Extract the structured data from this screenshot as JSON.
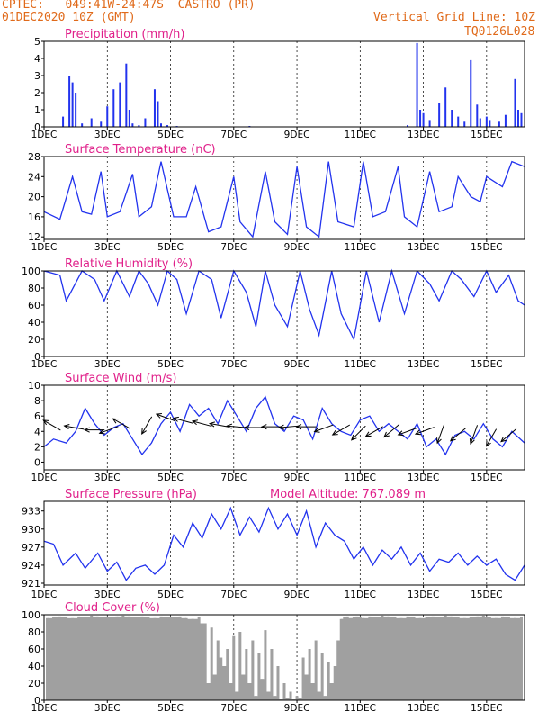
{
  "header": {
    "line1": "CPTEC:   049:41W-24:47S  CASTRO (PR)",
    "line2": "01DEC2020 10Z (GMT)",
    "grid_note": "Vertical Grid Line: 10Z",
    "code": "TQ0126L028",
    "model_altitude": "Model Altitude: 767.089 m"
  },
  "colors": {
    "header": "#e06a1a",
    "title": "#e0208a",
    "series": "#2233ee",
    "cloud": "#a0a0a0",
    "frame": "#000000"
  },
  "x_axis": {
    "ticks": [
      "1DEC",
      "3DEC",
      "5DEC",
      "7DEC",
      "9DEC",
      "11DEC",
      "13DEC",
      "15DEC"
    ],
    "tick_days": [
      1,
      3,
      5,
      7,
      9,
      11,
      13,
      15
    ],
    "range_days": [
      1.0,
      16.2
    ]
  },
  "chart_data": [
    {
      "id": "precip",
      "type": "bar",
      "title": "Precipitation (mm/h)",
      "ylim": [
        0,
        5
      ],
      "yticks": [
        0,
        1,
        2,
        3,
        4,
        5
      ],
      "grid_hline": 5,
      "x": [
        1.6,
        1.8,
        1.9,
        2.0,
        2.2,
        2.5,
        2.8,
        3.0,
        3.2,
        3.4,
        3.6,
        3.7,
        3.8,
        4.0,
        4.2,
        4.5,
        4.6,
        4.7,
        4.9,
        5.2,
        6.5,
        7.5,
        8.5,
        9.5,
        10.5,
        11.5,
        12.5,
        12.8,
        12.9,
        13.0,
        13.2,
        13.5,
        13.7,
        13.9,
        14.1,
        14.3,
        14.5,
        14.7,
        14.8,
        15.0,
        15.1,
        15.4,
        15.6,
        15.9,
        16.0,
        16.1
      ],
      "values": [
        0.6,
        3.0,
        2.6,
        2.0,
        0.2,
        0.5,
        0.3,
        1.2,
        2.2,
        2.6,
        3.7,
        1.0,
        0.2,
        0.1,
        0.5,
        2.2,
        1.5,
        0.2,
        0.1,
        0.05,
        0.02,
        0.05,
        0.02,
        0.02,
        0.02,
        0.02,
        0.1,
        4.9,
        1.0,
        0.8,
        0.4,
        1.4,
        2.3,
        1.0,
        0.6,
        0.3,
        3.9,
        1.3,
        0.5,
        0.6,
        0.4,
        0.3,
        0.7,
        2.8,
        1.0,
        0.8
      ]
    },
    {
      "id": "temp",
      "type": "line",
      "title": "Surface Temperature (nC)",
      "ylim": [
        11.5,
        28
      ],
      "yticks": [
        12,
        16,
        20,
        24,
        28
      ],
      "grid_hline": 28,
      "x": [
        1.0,
        1.5,
        1.9,
        2.2,
        2.5,
        2.8,
        3.0,
        3.4,
        3.8,
        4.0,
        4.4,
        4.7,
        5.1,
        5.5,
        5.8,
        6.2,
        6.6,
        7.0,
        7.2,
        7.6,
        8.0,
        8.3,
        8.7,
        9.0,
        9.3,
        9.7,
        10.0,
        10.3,
        10.8,
        11.1,
        11.4,
        11.8,
        12.2,
        12.4,
        12.8,
        13.2,
        13.5,
        13.9,
        14.1,
        14.5,
        14.8,
        15.0,
        15.5,
        15.8,
        16.2
      ],
      "y": [
        17,
        15.5,
        24,
        17,
        16.5,
        25,
        16,
        17,
        24.5,
        16,
        18,
        27,
        16,
        16,
        22,
        13,
        14,
        24,
        15,
        12,
        25,
        15,
        12.5,
        26,
        14,
        12,
        27,
        15,
        14,
        27,
        16,
        17,
        26,
        16,
        14,
        25,
        17,
        18,
        24,
        20,
        19,
        24,
        22,
        27,
        26
      ]
    },
    {
      "id": "humidity",
      "type": "line",
      "title": "Relative Humidity (%)",
      "ylim": [
        0,
        100
      ],
      "yticks": [
        0,
        20,
        40,
        60,
        80,
        100
      ],
      "grid_hline": 100,
      "x": [
        1.0,
        1.5,
        1.7,
        2.2,
        2.6,
        2.9,
        3.3,
        3.7,
        4.0,
        4.3,
        4.6,
        4.9,
        5.2,
        5.5,
        5.9,
        6.3,
        6.6,
        7.0,
        7.4,
        7.7,
        8.0,
        8.3,
        8.7,
        9.1,
        9.4,
        9.7,
        10.1,
        10.4,
        10.8,
        11.2,
        11.6,
        12.0,
        12.4,
        12.8,
        13.2,
        13.5,
        13.9,
        14.2,
        14.6,
        15.0,
        15.3,
        15.7,
        16.0,
        16.2
      ],
      "y": [
        100,
        95,
        65,
        100,
        90,
        65,
        100,
        70,
        100,
        85,
        60,
        100,
        90,
        50,
        100,
        90,
        45,
        100,
        75,
        35,
        100,
        60,
        35,
        100,
        55,
        25,
        100,
        50,
        20,
        100,
        40,
        100,
        50,
        100,
        85,
        65,
        100,
        90,
        70,
        100,
        75,
        95,
        65,
        60
      ]
    },
    {
      "id": "wind",
      "type": "line",
      "title": "Surface Wind (m/s)",
      "ylim": [
        -1,
        10
      ],
      "yticks": [
        0,
        2,
        4,
        6,
        8,
        10
      ],
      "grid_hline": 10,
      "x": [
        1.0,
        1.3,
        1.7,
        2.0,
        2.3,
        2.6,
        2.9,
        3.2,
        3.5,
        3.8,
        4.1,
        4.4,
        4.7,
        5.0,
        5.3,
        5.6,
        5.9,
        6.2,
        6.5,
        6.8,
        7.1,
        7.4,
        7.7,
        8.0,
        8.3,
        8.6,
        8.9,
        9.2,
        9.5,
        9.8,
        10.1,
        10.4,
        10.7,
        11.0,
        11.3,
        11.6,
        11.9,
        12.2,
        12.5,
        12.8,
        13.1,
        13.4,
        13.7,
        14.0,
        14.3,
        14.6,
        14.9,
        15.2,
        15.5,
        15.8,
        16.2
      ],
      "y": [
        2,
        3,
        2.5,
        4,
        7,
        5,
        3.5,
        4.5,
        5,
        3,
        1,
        2.5,
        5,
        6.5,
        4,
        7.5,
        6,
        7,
        5,
        8,
        6,
        4,
        7,
        8.5,
        5,
        4,
        6,
        5.5,
        3,
        7,
        5,
        4,
        3.5,
        5.5,
        6,
        4,
        5,
        4,
        3,
        5,
        2,
        3,
        1,
        3.5,
        4,
        3,
        5,
        3,
        2,
        4,
        2.5
      ],
      "vectors_x": [
        1.25,
        1.95,
        2.6,
        3.05,
        3.45,
        4.25,
        4.85,
        5.4,
        6.0,
        6.55,
        7.1,
        7.65,
        8.2,
        8.75,
        9.3,
        9.85,
        10.4,
        10.95,
        11.45,
        12.0,
        12.5,
        13.05,
        13.55,
        14.1,
        14.6,
        15.15,
        15.7
      ],
      "vectors_y": [
        4.8,
        4.5,
        4.2,
        4.2,
        5.0,
        4.8,
        5.8,
        5.4,
        5.0,
        4.8,
        4.6,
        4.5,
        4.6,
        4.6,
        4.6,
        4.4,
        4.2,
        3.8,
        4.0,
        4.1,
        4.0,
        4.1,
        3.7,
        3.6,
        3.6,
        3.2,
        3.5
      ],
      "vectors_angle_deg": [
        150,
        170,
        180,
        200,
        150,
        240,
        160,
        165,
        165,
        170,
        175,
        180,
        180,
        185,
        180,
        200,
        210,
        225,
        210,
        220,
        200,
        200,
        250,
        220,
        250,
        240,
        220
      ]
    },
    {
      "id": "pressure",
      "type": "line",
      "title": "Surface Pressure (hPa)",
      "ylim": [
        920.7,
        934.6
      ],
      "yticks": [
        921,
        924,
        927,
        930,
        933
      ],
      "grid_hline": null,
      "x": [
        1.0,
        1.3,
        1.6,
        2.0,
        2.3,
        2.7,
        3.0,
        3.3,
        3.6,
        3.9,
        4.2,
        4.5,
        4.8,
        5.1,
        5.4,
        5.7,
        6.0,
        6.3,
        6.6,
        6.9,
        7.2,
        7.5,
        7.8,
        8.1,
        8.4,
        8.7,
        9.0,
        9.3,
        9.6,
        9.9,
        10.2,
        10.5,
        10.8,
        11.1,
        11.4,
        11.7,
        12.0,
        12.3,
        12.6,
        12.9,
        13.2,
        13.5,
        13.8,
        14.1,
        14.4,
        14.7,
        15.0,
        15.3,
        15.6,
        15.9,
        16.2
      ],
      "y": [
        928,
        927.5,
        924,
        926,
        923.5,
        926,
        923,
        924.5,
        921.5,
        923.5,
        924,
        922.5,
        924,
        929,
        927,
        931,
        928.5,
        932.5,
        930,
        933.5,
        929,
        932,
        929.5,
        933.5,
        930,
        932.5,
        929,
        933,
        927,
        931,
        929,
        928,
        925,
        927,
        924,
        926.5,
        925,
        927,
        924,
        926,
        923,
        925,
        924.5,
        926,
        924,
        925.5,
        924,
        925,
        922.5,
        921.5,
        924
      ]
    },
    {
      "id": "cloud",
      "type": "bar",
      "title": "Cloud Cover (%)",
      "ylim": [
        0,
        100
      ],
      "yticks": [
        0,
        20,
        40,
        60,
        80,
        100
      ],
      "grid_hline": 100,
      "x": [
        1.1,
        1.3,
        1.5,
        1.7,
        1.9,
        2.1,
        2.3,
        2.5,
        2.7,
        2.9,
        3.1,
        3.3,
        3.5,
        3.7,
        3.9,
        4.1,
        4.3,
        4.5,
        4.7,
        4.9,
        5.1,
        5.3,
        5.5,
        5.7,
        5.9,
        6.1,
        6.2,
        6.3,
        6.4,
        6.5,
        6.6,
        6.7,
        6.8,
        6.9,
        7.0,
        7.1,
        7.2,
        7.3,
        7.4,
        7.5,
        7.6,
        7.7,
        7.8,
        7.9,
        8.0,
        8.1,
        8.2,
        8.3,
        8.4,
        8.5,
        8.6,
        8.7,
        8.8,
        8.9,
        9.0,
        9.1,
        9.2,
        9.3,
        9.4,
        9.5,
        9.6,
        9.7,
        9.8,
        9.9,
        10.0,
        10.1,
        10.2,
        10.3,
        10.4,
        10.5,
        10.6,
        10.7,
        10.8,
        10.9,
        11.0,
        11.1,
        11.3,
        11.5,
        11.7,
        11.9,
        12.1,
        12.3,
        12.5,
        12.7,
        12.9,
        13.1,
        13.3,
        13.5,
        13.7,
        13.9,
        14.1,
        14.3,
        14.5,
        14.7,
        14.9,
        15.1,
        15.3,
        15.5,
        15.7,
        15.9,
        16.1
      ],
      "values": [
        96,
        97,
        98,
        97,
        96,
        98,
        97,
        99,
        98,
        97,
        97,
        98,
        99,
        98,
        97,
        98,
        97,
        96,
        98,
        97,
        97,
        98,
        96,
        95,
        97,
        90,
        20,
        85,
        30,
        70,
        50,
        40,
        60,
        20,
        75,
        10,
        80,
        30,
        60,
        20,
        70,
        5,
        55,
        25,
        82,
        10,
        60,
        5,
        40,
        1,
        20,
        2,
        10,
        1,
        5,
        2,
        50,
        30,
        60,
        20,
        70,
        10,
        55,
        5,
        45,
        20,
        40,
        70,
        95,
        97,
        98,
        96,
        97,
        98,
        97,
        96,
        98,
        97,
        99,
        98,
        97,
        96,
        98,
        97,
        96,
        97,
        98,
        97,
        99,
        98,
        97,
        96,
        97,
        98,
        99,
        97,
        96,
        98,
        97,
        96,
        97
      ]
    }
  ]
}
